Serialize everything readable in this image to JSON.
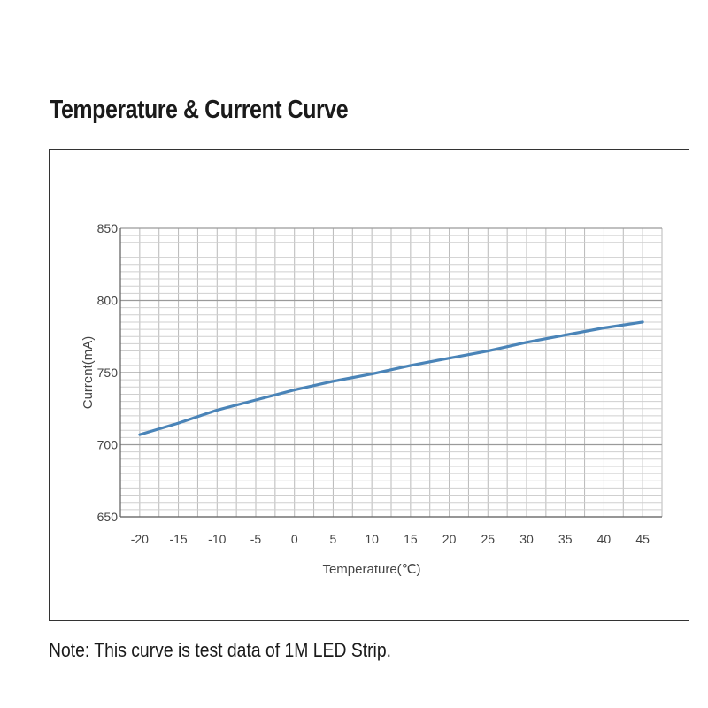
{
  "title": "Temperature & Current Curve",
  "note": "Note: This curve is test data of 1M LED Strip.",
  "chart_data": {
    "type": "line",
    "title": "Temperature & Current Curve",
    "xlabel": "Temperature(℃)",
    "ylabel": "Current(mA)",
    "xlim": [
      -20,
      45
    ],
    "ylim": [
      650,
      850
    ],
    "x_ticks": [
      -20,
      -15,
      -10,
      -5,
      0,
      5,
      10,
      15,
      20,
      25,
      30,
      35,
      40,
      45
    ],
    "y_ticks": [
      650,
      700,
      750,
      800,
      850
    ],
    "grid": true,
    "series": [
      {
        "color": "#4a84b8",
        "x": [
          -20,
          -15,
          -10,
          -5,
          0,
          5,
          10,
          15,
          20,
          25,
          30,
          35,
          40,
          45
        ],
        "y": [
          707,
          715,
          724,
          731,
          738,
          744,
          749,
          755,
          760,
          765,
          771,
          776,
          781,
          785
        ]
      }
    ]
  }
}
